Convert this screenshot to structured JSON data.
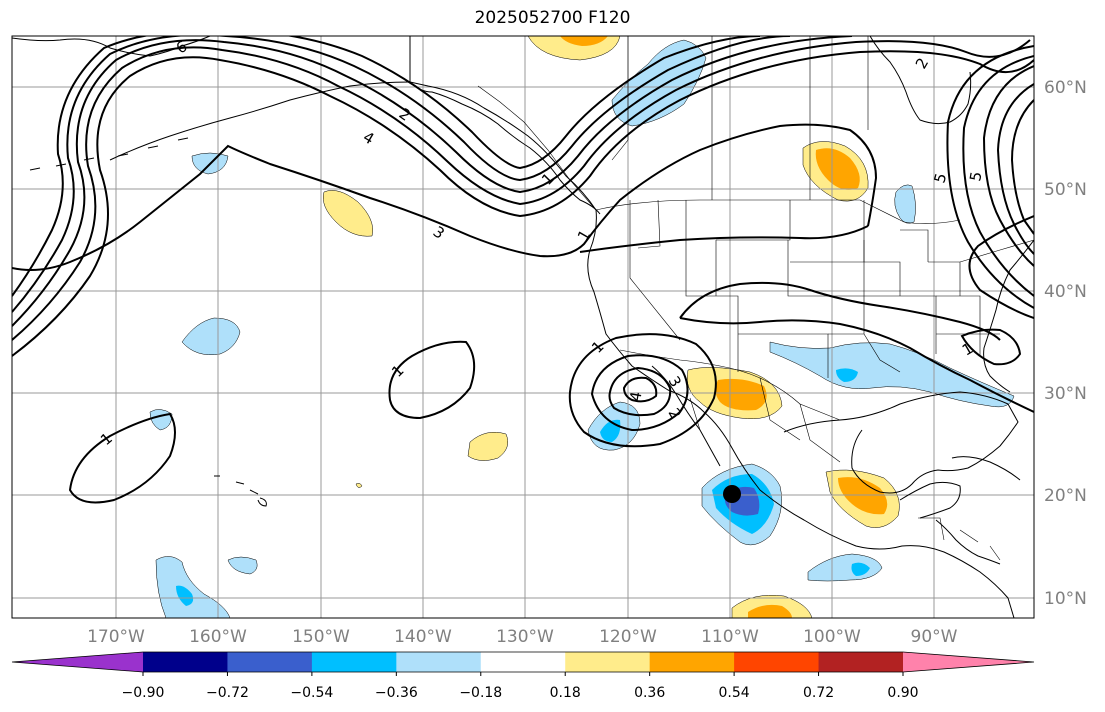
{
  "title": "2025052700 F120",
  "map": {
    "projection": "Mercator",
    "lon_range": [
      "-180",
      "-80"
    ],
    "lat_range": [
      "8",
      "65"
    ],
    "lon_labels": [
      "170°W",
      "160°W",
      "150°W",
      "140°W",
      "130°W",
      "120°W",
      "110°W",
      "100°W",
      "90°W"
    ],
    "lat_labels": [
      "60°N",
      "50°N",
      "40°N",
      "30°N",
      "20°N",
      "10°N"
    ],
    "gridlines": true,
    "coastlines": true,
    "country_and_state_borders": true,
    "contour_labels": [
      "6",
      "5",
      "4",
      "3",
      "2",
      "1",
      "1",
      "1",
      "1",
      "4",
      "3",
      "2",
      "1",
      "2",
      "5",
      "1"
    ],
    "shading_colors": {
      "0.18": "#ffec8b",
      "0.36": "#ffa500",
      "-0.18": "#afe0fa",
      "-0.36": "#00bfff",
      "-0.54": "#3a5fcd"
    },
    "marker": "black-dot"
  },
  "colorbar": {
    "tick_labels": [
      "−0.90",
      "−0.72",
      "−0.54",
      "−0.36",
      "−0.18",
      "0.18",
      "0.36",
      "0.54",
      "0.72",
      "0.90"
    ],
    "colors": [
      "#9a32cd",
      "#00008b",
      "#3a5fcd",
      "#00bfff",
      "#afe0fa",
      "#ffffff",
      "#ffec8b",
      "#ffa500",
      "#ff4500",
      "#b22222",
      "#ff82ab"
    ]
  }
}
